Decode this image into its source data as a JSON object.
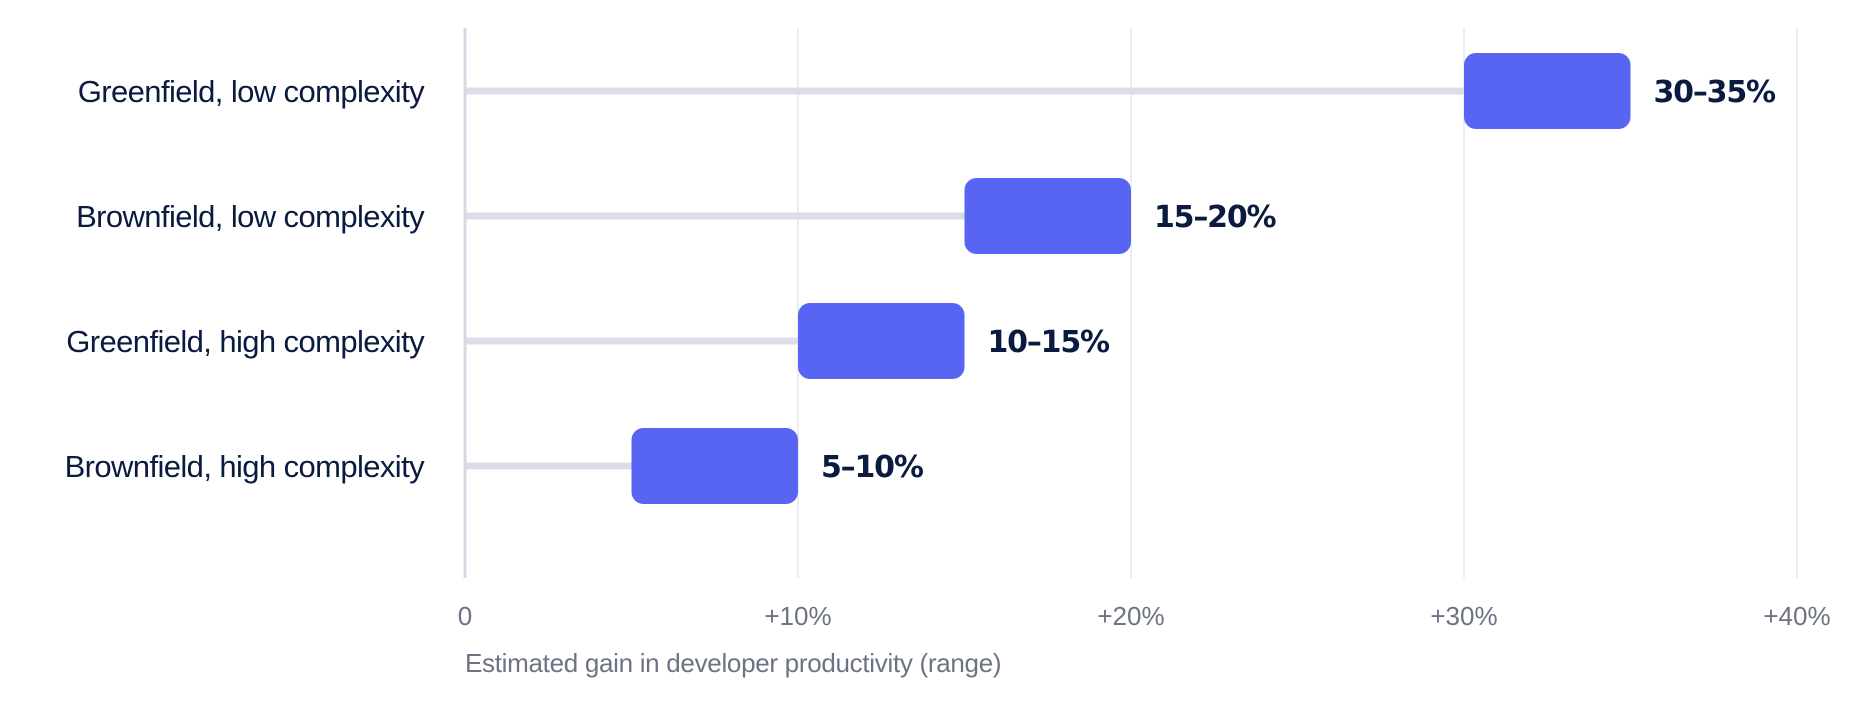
{
  "chart_data": {
    "type": "bar",
    "orientation": "horizontal",
    "subtype": "range",
    "title": "",
    "xlabel": "Estimated gain in developer productivity (range)",
    "ylabel": "",
    "xlim": [
      0,
      40
    ],
    "x_ticks": [
      0,
      10,
      20,
      30,
      40
    ],
    "x_tick_labels": [
      "0",
      "+10%",
      "+20%",
      "+30%",
      "+40%"
    ],
    "grid": "vertical",
    "legend": "none",
    "categories": [
      "Greenfield, low complexity",
      "Brownfield, low complexity",
      "Greenfield, high complexity",
      "Brownfield, high complexity"
    ],
    "ranges": [
      [
        30,
        35
      ],
      [
        15,
        20
      ],
      [
        10,
        15
      ],
      [
        5,
        10
      ]
    ],
    "data_labels": [
      "30–35%",
      "15–20%",
      "10–15%",
      "5–10%"
    ],
    "colors": {
      "bar": "#5865f2",
      "track": "#dcdceb",
      "grid": "#ececf2",
      "axis": "#d8d8e4",
      "text": "#0b1b3f",
      "muted": "#6e7383"
    }
  }
}
